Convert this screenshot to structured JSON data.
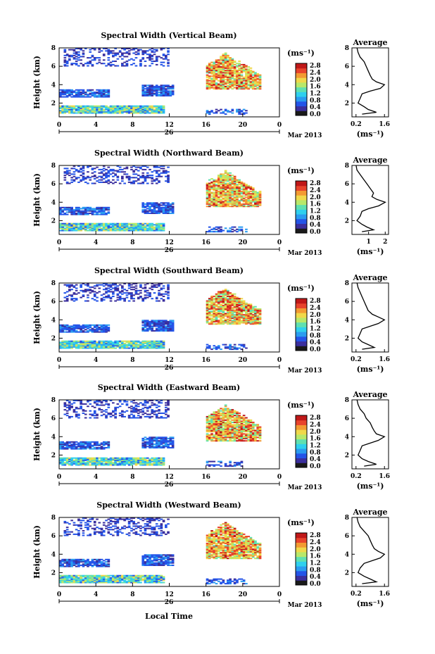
{
  "figure": {
    "xlabel": "Local Time",
    "date_label": "Mar 2013",
    "day_label": "26",
    "x_ticks": [
      "0",
      "4",
      "8",
      "12",
      "16",
      "20",
      "0"
    ],
    "ylabel": "Height (km)",
    "y_ticks": [
      "2",
      "4",
      "6",
      "8"
    ],
    "colorbar_unit": "(ms⁻¹)",
    "colorbar_ticks": [
      "0.0",
      "0.4",
      "0.8",
      "1.2",
      "1.6",
      "2.0",
      "2.4",
      "2.8"
    ],
    "avg_title": "Average",
    "avg_unit": "(ms⁻¹)",
    "avg_y_ticks": [
      "2",
      "4",
      "6",
      "8"
    ],
    "colors": {
      "missing": "#ffffff",
      "scale": [
        "#1a1a1a",
        "#3b2f9e",
        "#2454e8",
        "#2a9cf0",
        "#2fd0ee",
        "#5fe0b0",
        "#b8e86a",
        "#f0d84a",
        "#f39a32",
        "#e8432c",
        "#c01818"
      ]
    }
  },
  "chart_data": [
    {
      "type": "heatmap",
      "title": "Spectral Width (Vertical Beam)",
      "x_range_hours": [
        0,
        24
      ],
      "y_range_km": [
        0.5,
        8
      ],
      "color_range_ms": [
        0,
        2.8
      ],
      "avg_title": "Average",
      "avg_xticks": [
        "0.2",
        "1.6"
      ],
      "avg_xlim": [
        0,
        1.8
      ],
      "avg_profile": {
        "height_km": [
          0.8,
          1.0,
          1.3,
          1.6,
          2.0,
          2.5,
          3.0,
          3.3,
          3.6,
          4.0,
          4.3,
          4.6,
          5.0,
          5.5,
          6.0,
          6.5,
          7.0,
          7.5,
          8.0
        ],
        "width_ms": [
          0.5,
          1.2,
          0.8,
          0.6,
          0.3,
          0.4,
          0.5,
          0.9,
          1.4,
          1.6,
          1.2,
          1.0,
          0.9,
          0.8,
          0.7,
          0.6,
          0.4,
          0.3,
          0.25
        ]
      }
    },
    {
      "type": "heatmap",
      "title": "Spectral Width (Northward Beam)",
      "x_range_hours": [
        0,
        24
      ],
      "y_range_km": [
        0.5,
        8
      ],
      "color_range_ms": [
        0,
        2.8
      ],
      "avg_title": "Average",
      "avg_xticks": [
        "1",
        "2"
      ],
      "avg_xlim": [
        0,
        2.2
      ],
      "avg_profile": {
        "height_km": [
          0.8,
          1.0,
          1.3,
          1.6,
          2.0,
          2.5,
          3.0,
          3.3,
          3.6,
          4.0,
          4.3,
          4.6,
          5.0,
          5.5,
          6.0,
          6.5,
          7.0,
          7.5,
          8.0
        ],
        "width_ms": [
          0.6,
          1.3,
          0.9,
          0.6,
          0.3,
          0.5,
          0.6,
          1.0,
          1.6,
          2.0,
          1.5,
          1.2,
          1.3,
          1.1,
          0.9,
          0.7,
          0.5,
          0.3,
          0.25
        ]
      }
    },
    {
      "type": "heatmap",
      "title": "Spectral Width (Southward Beam)",
      "x_range_hours": [
        0,
        24
      ],
      "y_range_km": [
        0.5,
        8
      ],
      "color_range_ms": [
        0,
        2.8
      ],
      "avg_title": "Average",
      "avg_xticks": [
        "0.2",
        "1.6"
      ],
      "avg_xlim": [
        0,
        1.8
      ],
      "avg_profile": {
        "height_km": [
          0.8,
          1.0,
          1.3,
          1.6,
          2.0,
          2.5,
          3.0,
          3.3,
          3.6,
          4.0,
          4.3,
          4.6,
          5.0,
          5.5,
          6.0,
          6.5,
          7.0,
          7.5,
          8.0
        ],
        "width_ms": [
          0.5,
          1.1,
          0.8,
          0.5,
          0.3,
          0.4,
          0.5,
          0.9,
          1.3,
          1.6,
          1.3,
          1.0,
          0.8,
          0.7,
          0.6,
          0.5,
          0.4,
          0.3,
          0.25
        ]
      }
    },
    {
      "type": "heatmap",
      "title": "Spectral Width (Eastward Beam)",
      "x_range_hours": [
        0,
        24
      ],
      "y_range_km": [
        0.5,
        8
      ],
      "color_range_ms": [
        0,
        2.8
      ],
      "avg_title": "Average",
      "avg_xticks": [
        "0.2",
        "1.6"
      ],
      "avg_xlim": [
        0,
        1.8
      ],
      "avg_profile": {
        "height_km": [
          0.8,
          1.0,
          1.3,
          1.6,
          2.0,
          2.5,
          3.0,
          3.3,
          3.6,
          4.0,
          4.3,
          4.6,
          5.0,
          5.5,
          6.0,
          6.5,
          7.0,
          7.5,
          8.0
        ],
        "width_ms": [
          0.6,
          1.2,
          0.8,
          0.5,
          0.3,
          0.4,
          0.5,
          0.9,
          1.3,
          1.6,
          1.2,
          1.1,
          1.0,
          0.9,
          0.7,
          0.6,
          0.4,
          0.3,
          0.25
        ]
      }
    },
    {
      "type": "heatmap",
      "title": "Spectral Width (Westward Beam)",
      "x_range_hours": [
        0,
        24
      ],
      "y_range_km": [
        0.5,
        8
      ],
      "color_range_ms": [
        0,
        2.8
      ],
      "avg_title": "Average",
      "avg_xticks": [
        "0.2",
        "1.6"
      ],
      "avg_xlim": [
        0,
        1.8
      ],
      "avg_profile": {
        "height_km": [
          0.8,
          1.0,
          1.3,
          1.6,
          2.0,
          2.5,
          3.0,
          3.3,
          3.6,
          4.0,
          4.3,
          4.6,
          5.0,
          5.5,
          6.0,
          6.5,
          7.0,
          7.5,
          8.0
        ],
        "width_ms": [
          0.5,
          1.2,
          0.9,
          0.6,
          0.3,
          0.4,
          0.6,
          1.0,
          1.4,
          1.6,
          1.3,
          1.1,
          1.0,
          0.9,
          0.8,
          0.6,
          0.4,
          0.3,
          0.25
        ]
      }
    }
  ]
}
